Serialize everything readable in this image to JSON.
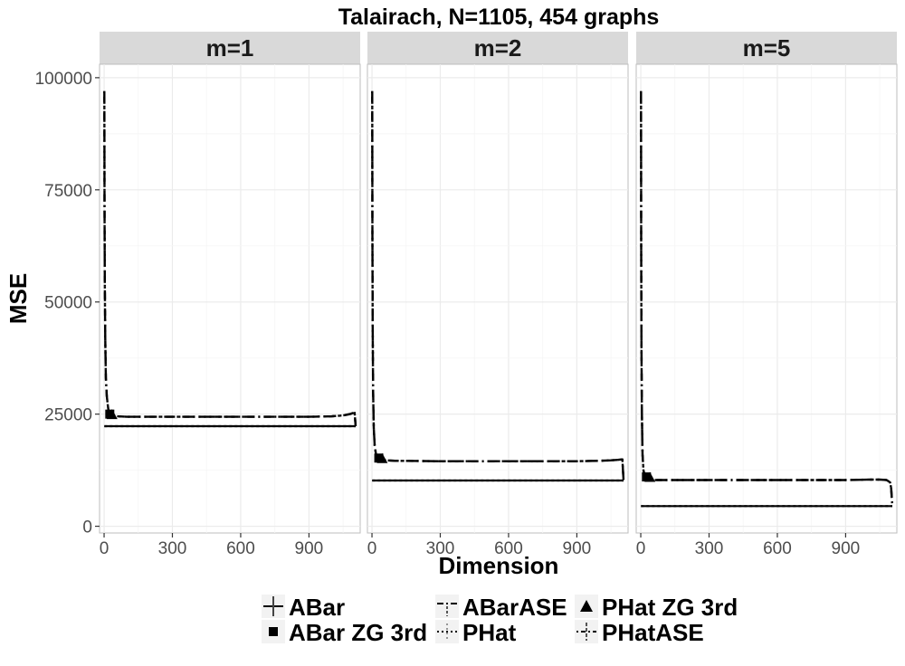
{
  "chart_data": {
    "type": "line",
    "title": "Talairach, N=1105, 454 graphs",
    "xlabel": "Dimension",
    "ylabel": "MSE",
    "xlim": [
      -20,
      1125
    ],
    "ylim": [
      -1500,
      103000
    ],
    "xticks": [
      0,
      300,
      600,
      900
    ],
    "yticks": [
      0,
      25000,
      50000,
      75000,
      100000
    ],
    "ytick_labels": [
      "0",
      "25000",
      "50000",
      "75000",
      "100000"
    ],
    "grid": true,
    "legend_position": "bottom",
    "legend_entries": [
      "ABar",
      "ABar ZG 3rd",
      "ABarASE",
      "PHat",
      "PHat ZG 3rd",
      "PHatASE"
    ],
    "facets": [
      {
        "label": "m=1",
        "series": [
          {
            "name": "ABar",
            "x": [
              1,
              1105
            ],
            "y": [
              22300,
              22300
            ]
          },
          {
            "name": "PHat",
            "x": [
              1,
              1105
            ],
            "y": [
              22300,
              22300
            ]
          },
          {
            "name": "ABarASE",
            "x": [
              1,
              2,
              3,
              5,
              8,
              12,
              16,
              20,
              25,
              30,
              40,
              60,
              100,
              300,
              600,
              900,
              1000,
              1050,
              1080,
              1095,
              1100,
              1105
            ],
            "y": [
              97000,
              72000,
              55000,
              42000,
              33000,
              29000,
              27000,
              25500,
              25000,
              24800,
              24600,
              24500,
              24400,
              24400,
              24400,
              24400,
              24500,
              24700,
              25000,
              25300,
              25600,
              22300
            ]
          },
          {
            "name": "PHatASE",
            "x": [
              1,
              2,
              3,
              5,
              8,
              12,
              16,
              20,
              25,
              30,
              40,
              60,
              100,
              300,
              600,
              900,
              1000,
              1050,
              1080,
              1095,
              1100,
              1105
            ],
            "y": [
              97000,
              72000,
              55000,
              42000,
              33000,
              29000,
              27000,
              25500,
              25000,
              24800,
              24600,
              24500,
              24400,
              24400,
              24400,
              24400,
              24500,
              24700,
              25000,
              25300,
              25600,
              22300
            ]
          },
          {
            "name": "ABar ZG 3rd",
            "x": [
              25
            ],
            "y": [
              25000
            ]
          },
          {
            "name": "PHat ZG 3rd",
            "x": [
              35
            ],
            "y": [
              24900
            ]
          }
        ]
      },
      {
        "label": "m=2",
        "series": [
          {
            "name": "ABar",
            "x": [
              1,
              1105
            ],
            "y": [
              10200,
              10200
            ]
          },
          {
            "name": "PHat",
            "x": [
              1,
              1105
            ],
            "y": [
              10200,
              10200
            ]
          },
          {
            "name": "ABarASE",
            "x": [
              1,
              2,
              3,
              5,
              8,
              12,
              16,
              20,
              25,
              30,
              40,
              60,
              100,
              300,
              600,
              900,
              1000,
              1050,
              1080,
              1095,
              1100,
              1105
            ],
            "y": [
              97000,
              65000,
              45000,
              30000,
              22000,
              18000,
              16500,
              15500,
              15200,
              15000,
              14800,
              14700,
              14600,
              14500,
              14500,
              14500,
              14600,
              14700,
              14800,
              14900,
              14900,
              10200
            ]
          },
          {
            "name": "PHatASE",
            "x": [
              1,
              2,
              3,
              5,
              8,
              12,
              16,
              20,
              25,
              30,
              40,
              60,
              100,
              300,
              600,
              900,
              1000,
              1050,
              1080,
              1095,
              1100,
              1105
            ],
            "y": [
              97000,
              65000,
              45000,
              30000,
              22000,
              18000,
              16500,
              15500,
              15200,
              15000,
              14800,
              14700,
              14600,
              14500,
              14500,
              14500,
              14600,
              14700,
              14800,
              14900,
              14900,
              10200
            ]
          },
          {
            "name": "ABar ZG 3rd",
            "x": [
              30
            ],
            "y": [
              15200
            ]
          },
          {
            "name": "PHat ZG 3rd",
            "x": [
              45
            ],
            "y": [
              15100
            ]
          }
        ]
      },
      {
        "label": "m=5",
        "series": [
          {
            "name": "ABar",
            "x": [
              1,
              1105
            ],
            "y": [
              4500,
              4500
            ]
          },
          {
            "name": "PHat",
            "x": [
              1,
              1105
            ],
            "y": [
              4500,
              4500
            ]
          },
          {
            "name": "ABarASE",
            "x": [
              1,
              2,
              3,
              5,
              8,
              12,
              16,
              20,
              25,
              30,
              40,
              60,
              100,
              300,
              600,
              900,
              1000,
              1050,
              1080,
              1095,
              1100,
              1105
            ],
            "y": [
              97000,
              62000,
              40000,
              25000,
              16000,
              12500,
              11500,
              11000,
              10800,
              10600,
              10400,
              10300,
              10300,
              10300,
              10300,
              10300,
              10400,
              10400,
              10300,
              9800,
              8500,
              4500
            ]
          },
          {
            "name": "PHatASE",
            "x": [
              1,
              2,
              3,
              5,
              8,
              12,
              16,
              20,
              25,
              30,
              40,
              60,
              100,
              300,
              600,
              900,
              1000,
              1050,
              1080,
              1095,
              1100,
              1105
            ],
            "y": [
              97000,
              62000,
              40000,
              25000,
              16000,
              12500,
              11500,
              11000,
              10800,
              10600,
              10400,
              10300,
              10300,
              10300,
              10300,
              10300,
              10400,
              10400,
              10300,
              9800,
              8500,
              4500
            ]
          },
          {
            "name": "ABar ZG 3rd",
            "x": [
              25
            ],
            "y": [
              11000
            ]
          },
          {
            "name": "PHat ZG 3rd",
            "x": [
              40
            ],
            "y": [
              10900
            ]
          }
        ]
      }
    ]
  }
}
